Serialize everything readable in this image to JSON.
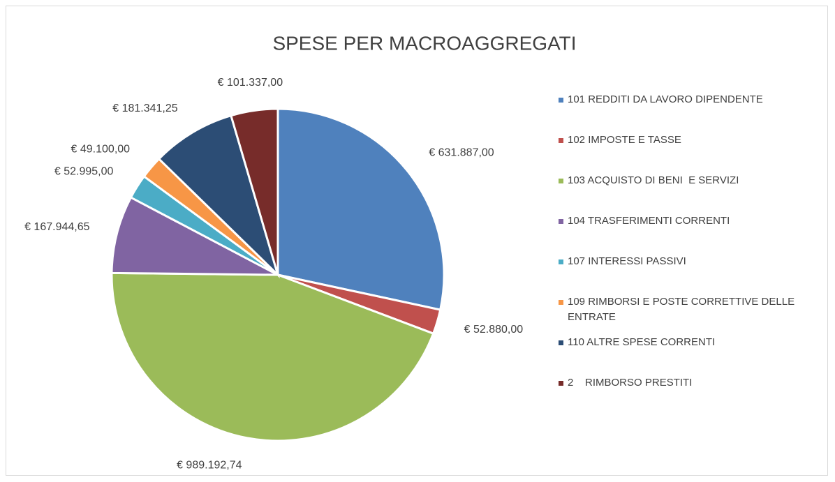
{
  "chart_data": {
    "type": "pie",
    "title": "SPESE PER MACROAGGREGATI",
    "categories": [
      "101 REDDITI DA LAVORO DIPENDENTE",
      "102 IMPOSTE E TASSE",
      "103 ACQUISTO DI BENI  E SERVIZI",
      "104 TRASFERIMENTI CORRENTI",
      "107 INTERESSI PASSIVI",
      "109 RIMBORSI E POSTE CORRETTIVE DELLE ENTRATE",
      "110 ALTRE SPESE CORRENTI",
      "2    RIMBORSO PRESTITI"
    ],
    "values": [
      631887.0,
      52880.0,
      989192.74,
      167944.65,
      52995.0,
      49100.0,
      181341.25,
      101337.0
    ],
    "value_labels": [
      "€ 631.887,00",
      "€ 52.880,00",
      "€ 989.192,74",
      "€ 167.944,65",
      "€ 52.995,00",
      "€ 49.100,00",
      "€ 181.341,25",
      "€ 101.337,00"
    ],
    "colors": [
      "#4f81bd",
      "#c0504d",
      "#9bbb59",
      "#8064a2",
      "#4bacc6",
      "#f79646",
      "#2c4d75",
      "#772c2a"
    ],
    "legend": "right"
  }
}
